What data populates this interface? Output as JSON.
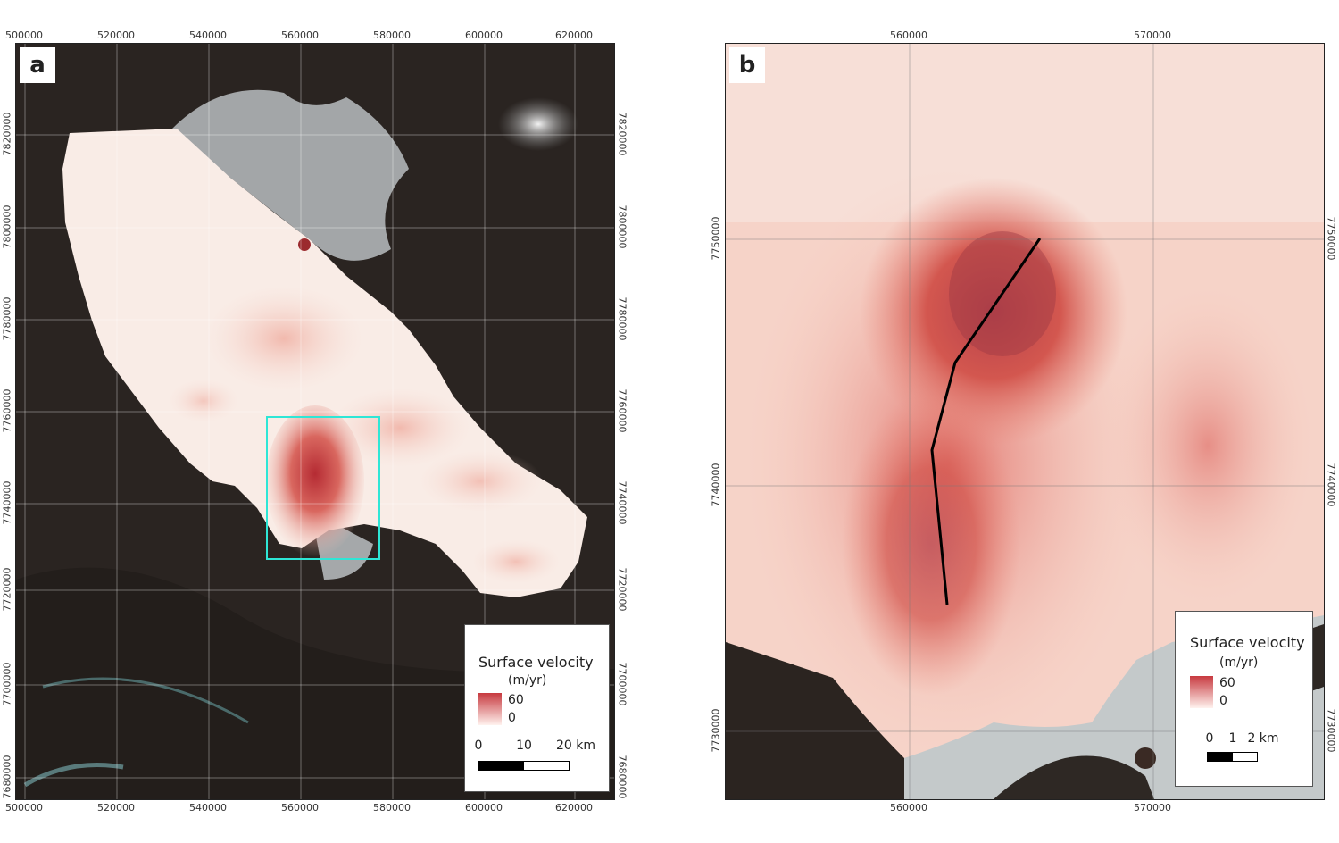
{
  "panel_a": {
    "label": "a",
    "x_ticks": [
      "500000",
      "520000",
      "540000",
      "560000",
      "580000",
      "600000",
      "620000"
    ],
    "y_ticks": [
      "7820000",
      "7800000",
      "7780000",
      "7760000",
      "7740000",
      "7720000",
      "7700000",
      "7680000"
    ],
    "legend": {
      "title": "Surface velocity",
      "unit": "(m/yr)",
      "max": "60",
      "min": "0"
    },
    "scalebar": {
      "labels": [
        "0",
        "10",
        "20 km"
      ]
    }
  },
  "panel_b": {
    "label": "b",
    "x_ticks": [
      "560000",
      "570000"
    ],
    "y_ticks": [
      "7750000",
      "7740000",
      "7730000"
    ],
    "legend": {
      "title": "Surface velocity",
      "unit": "(m/yr)",
      "max": "60",
      "min": "0"
    },
    "scalebar": {
      "labels": [
        "0",
        "1",
        "2 km"
      ]
    }
  },
  "colors": {
    "velocity_high": "#c7393f",
    "velocity_low": "#fff2ee",
    "inset_box": "#2ee6d6",
    "profile_line": "#000000",
    "terrain": "#2a2421"
  }
}
